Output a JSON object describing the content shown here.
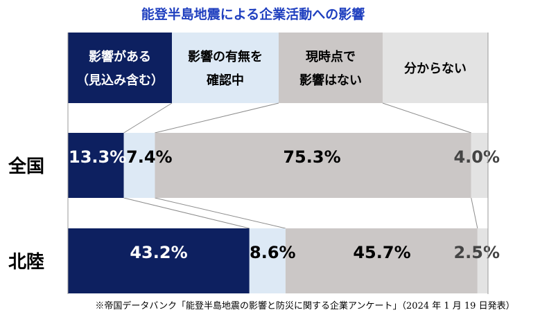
{
  "colors": {
    "series": [
      "#0d2060",
      "#dde9f5",
      "#cbc7c6",
      "#e3e3e3"
    ],
    "value_text": [
      "#ffffff",
      "#000000",
      "#000000",
      "#444444"
    ],
    "legend_text": [
      "#ffffff",
      "#000000",
      "#000000",
      "#000000"
    ],
    "title": "#1f3fbf"
  },
  "chart_data": {
    "type": "bar",
    "orientation": "horizontal",
    "stacked": true,
    "normalized_percent": true,
    "title": "能登半島地震による企業活動への影響",
    "categories": [
      "全国",
      "北陸"
    ],
    "series": [
      {
        "name": "影響がある（見込み含む）",
        "legend_lines": [
          "影響がある",
          "（見込み含む）"
        ],
        "values": [
          13.3,
          43.2
        ],
        "labels": [
          "13.3%",
          "43.2%"
        ]
      },
      {
        "name": "影響の有無を確認中",
        "legend_lines": [
          "影響の有無を",
          "確認中"
        ],
        "values": [
          7.4,
          8.6
        ],
        "labels": [
          "7.4%",
          "8.6%"
        ]
      },
      {
        "name": "現時点で影響はない",
        "legend_lines": [
          "現時点で",
          "影響はない"
        ],
        "values": [
          75.3,
          45.7
        ],
        "labels": [
          "75.3%",
          "45.7%"
        ]
      },
      {
        "name": "分からない",
        "legend_lines": [
          "分からない"
        ],
        "values": [
          4.0,
          2.5
        ],
        "labels": [
          "4.0%",
          "2.5%"
        ]
      }
    ],
    "xlim": [
      0,
      100
    ],
    "legend_placement": "top",
    "grid": false,
    "source": "※帝国データバンク「能登半島地震の影響と防災に関する企業アンケート」（2024 年 1 月 19 日発表）"
  }
}
